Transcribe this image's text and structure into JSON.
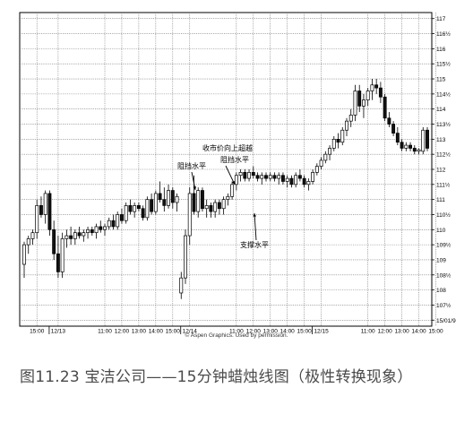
{
  "chart_data": {
    "type": "candlestick",
    "title": "",
    "xlabel": "",
    "ylabel": "",
    "ylim": [
      106.8,
      117.2
    ],
    "y_ticks": [
      {
        "v": 117,
        "label": "117"
      },
      {
        "v": 116.5,
        "label": "116½"
      },
      {
        "v": 116,
        "label": "116"
      },
      {
        "v": 115.5,
        "label": "115½"
      },
      {
        "v": 115,
        "label": "115"
      },
      {
        "v": 114.5,
        "label": "114½"
      },
      {
        "v": 114,
        "label": "114"
      },
      {
        "v": 113.5,
        "label": "113½"
      },
      {
        "v": 113,
        "label": "113"
      },
      {
        "v": 112.5,
        "label": "112½"
      },
      {
        "v": 112,
        "label": "112"
      },
      {
        "v": 111.5,
        "label": "111½"
      },
      {
        "v": 111,
        "label": "111"
      },
      {
        "v": 110.5,
        "label": "110½"
      },
      {
        "v": 110,
        "label": "110"
      },
      {
        "v": 109.5,
        "label": "109½"
      },
      {
        "v": 109,
        "label": "109"
      },
      {
        "v": 108.5,
        "label": "108½"
      },
      {
        "v": 108,
        "label": "108"
      },
      {
        "v": 107.5,
        "label": "107½"
      },
      {
        "v": 107,
        "label": "15/01/9"
      }
    ],
    "x_ticks": [
      {
        "i": 3,
        "label": "15:00"
      },
      {
        "i": 8,
        "label": "12/13"
      },
      {
        "i": 19,
        "label": "11:00"
      },
      {
        "i": 23,
        "label": "12:00"
      },
      {
        "i": 27,
        "label": "13:00"
      },
      {
        "i": 31,
        "label": "14:00"
      },
      {
        "i": 35,
        "label": "15:00"
      },
      {
        "i": 39,
        "label": "12/14"
      },
      {
        "i": 50,
        "label": "11:00"
      },
      {
        "i": 54,
        "label": "12:00"
      },
      {
        "i": 58,
        "label": "13:00"
      },
      {
        "i": 62,
        "label": "14:00"
      },
      {
        "i": 66,
        "label": "15:00"
      },
      {
        "i": 70,
        "label": "12/15"
      },
      {
        "i": 81,
        "label": "11:00"
      },
      {
        "i": 85,
        "label": "12:00"
      },
      {
        "i": 89,
        "label": "13:00"
      },
      {
        "i": 93,
        "label": "14:00"
      },
      {
        "i": 97,
        "label": "15:00"
      }
    ],
    "candles": [
      [
        108.85,
        109.6,
        108.4,
        109.5
      ],
      [
        109.5,
        109.8,
        109.2,
        109.7
      ],
      [
        109.7,
        110.0,
        109.5,
        109.9
      ],
      [
        109.9,
        111.0,
        109.7,
        110.8
      ],
      [
        110.8,
        111.1,
        110.4,
        110.5
      ],
      [
        110.5,
        111.3,
        110.2,
        111.2
      ],
      [
        111.2,
        111.3,
        109.8,
        110.0
      ],
      [
        110.0,
        110.3,
        109.0,
        109.2
      ],
      [
        109.2,
        109.8,
        108.4,
        108.6
      ],
      [
        108.6,
        109.9,
        108.4,
        109.7
      ],
      [
        109.7,
        110.0,
        109.4,
        109.8
      ],
      [
        109.8,
        110.1,
        109.5,
        109.7
      ],
      [
        109.7,
        110.0,
        109.5,
        109.9
      ],
      [
        109.9,
        110.1,
        109.7,
        109.8
      ],
      [
        109.8,
        110.0,
        109.6,
        109.9
      ],
      [
        109.9,
        110.1,
        109.7,
        110.0
      ],
      [
        110.0,
        110.1,
        109.8,
        109.9
      ],
      [
        109.9,
        110.2,
        109.7,
        110.1
      ],
      [
        110.1,
        110.3,
        109.9,
        110.0
      ],
      [
        110.0,
        110.2,
        109.8,
        110.1
      ],
      [
        110.1,
        110.4,
        110.0,
        110.3
      ],
      [
        110.3,
        110.5,
        110.0,
        110.1
      ],
      [
        110.1,
        110.6,
        110.0,
        110.5
      ],
      [
        110.5,
        110.7,
        110.2,
        110.3
      ],
      [
        110.3,
        110.9,
        110.2,
        110.8
      ],
      [
        110.8,
        111.0,
        110.5,
        110.6
      ],
      [
        110.6,
        110.9,
        110.4,
        110.8
      ],
      [
        110.8,
        110.9,
        110.6,
        110.7
      ],
      [
        110.7,
        110.8,
        110.3,
        110.4
      ],
      [
        110.4,
        111.1,
        110.3,
        111.0
      ],
      [
        111.0,
        111.2,
        110.5,
        110.6
      ],
      [
        110.6,
        111.3,
        110.5,
        111.2
      ],
      [
        111.2,
        111.6,
        110.9,
        111.0
      ],
      [
        111.0,
        111.4,
        110.6,
        110.8
      ],
      [
        110.8,
        111.5,
        110.7,
        111.3
      ],
      [
        111.3,
        111.4,
        110.7,
        110.9
      ],
      [
        110.9,
        111.2,
        110.6,
        111.1
      ],
      [
        107.9,
        108.6,
        107.7,
        108.4
      ],
      [
        108.4,
        110.0,
        108.2,
        109.8
      ],
      [
        109.8,
        111.4,
        109.5,
        111.2
      ],
      [
        111.2,
        111.8,
        110.5,
        110.6
      ],
      [
        110.6,
        111.4,
        110.4,
        111.3
      ],
      [
        111.3,
        111.4,
        110.6,
        110.7
      ],
      [
        110.7,
        111.0,
        110.4,
        110.8
      ],
      [
        110.8,
        110.9,
        110.4,
        110.6
      ],
      [
        110.6,
        111.0,
        110.4,
        110.9
      ],
      [
        110.9,
        111.0,
        110.5,
        110.7
      ],
      [
        110.7,
        111.1,
        110.5,
        111.0
      ],
      [
        111.0,
        111.2,
        110.8,
        111.1
      ],
      [
        111.1,
        111.6,
        111.0,
        111.5
      ],
      [
        111.5,
        111.9,
        111.3,
        111.8
      ],
      [
        111.8,
        112.0,
        111.6,
        111.9
      ],
      [
        111.9,
        112.0,
        111.6,
        111.7
      ],
      [
        111.7,
        112.0,
        111.6,
        111.9
      ],
      [
        111.9,
        112.1,
        111.7,
        111.8
      ],
      [
        111.8,
        111.9,
        111.6,
        111.7
      ],
      [
        111.7,
        111.9,
        111.5,
        111.8
      ],
      [
        111.8,
        111.9,
        111.6,
        111.7
      ],
      [
        111.7,
        111.9,
        111.6,
        111.8
      ],
      [
        111.8,
        111.9,
        111.6,
        111.7
      ],
      [
        111.7,
        111.9,
        111.5,
        111.8
      ],
      [
        111.8,
        111.9,
        111.5,
        111.6
      ],
      [
        111.6,
        111.8,
        111.4,
        111.7
      ],
      [
        111.7,
        111.8,
        111.4,
        111.5
      ],
      [
        111.5,
        111.9,
        111.4,
        111.8
      ],
      [
        111.8,
        112.0,
        111.6,
        111.7
      ],
      [
        111.7,
        111.8,
        111.4,
        111.5
      ],
      [
        111.5,
        111.7,
        111.3,
        111.6
      ],
      [
        111.6,
        112.0,
        111.5,
        111.9
      ],
      [
        111.9,
        112.2,
        111.8,
        112.1
      ],
      [
        112.1,
        112.4,
        112.0,
        112.3
      ],
      [
        112.3,
        112.6,
        112.2,
        112.5
      ],
      [
        112.5,
        112.8,
        112.3,
        112.7
      ],
      [
        112.7,
        113.1,
        112.6,
        113.0
      ],
      [
        113.0,
        113.2,
        112.7,
        112.9
      ],
      [
        112.9,
        113.4,
        112.8,
        113.3
      ],
      [
        113.3,
        113.7,
        113.1,
        113.6
      ],
      [
        113.6,
        114.0,
        113.4,
        113.8
      ],
      [
        113.8,
        114.8,
        113.6,
        114.6
      ],
      [
        114.6,
        114.8,
        113.9,
        114.1
      ],
      [
        114.1,
        114.5,
        113.7,
        114.3
      ],
      [
        114.3,
        114.7,
        114.1,
        114.6
      ],
      [
        114.6,
        115.0,
        114.3,
        114.8
      ],
      [
        114.8,
        115.0,
        114.5,
        114.7
      ],
      [
        114.7,
        114.9,
        114.2,
        114.4
      ],
      [
        114.4,
        114.5,
        113.6,
        113.7
      ],
      [
        113.7,
        113.9,
        113.4,
        113.5
      ],
      [
        113.5,
        113.6,
        113.1,
        113.2
      ],
      [
        113.2,
        113.4,
        112.8,
        112.9
      ],
      [
        112.9,
        113.0,
        112.6,
        112.7
      ],
      [
        112.7,
        112.9,
        112.6,
        112.8
      ],
      [
        112.8,
        112.9,
        112.6,
        112.7
      ],
      [
        112.7,
        112.8,
        112.5,
        112.6
      ],
      [
        112.6,
        112.7,
        112.5,
        112.65
      ],
      [
        112.6,
        113.4,
        112.5,
        113.3
      ],
      [
        113.3,
        113.4,
        112.6,
        112.7
      ]
    ],
    "resistance_level": 111.1,
    "support_level": 111.8,
    "grid": true,
    "annotations": [
      {
        "text": "阻挡水平",
        "name": "annotation-resistance-1"
      },
      {
        "text": "收市价向上超越",
        "name": "annotation-close-above"
      },
      {
        "text": "阻挡水平",
        "name": "annotation-resistance-2"
      },
      {
        "text": "支撑水平",
        "name": "annotation-support"
      }
    ]
  },
  "credit": "© Aspen Graphics. Used by permission.",
  "caption": "图11.23 宝洁公司——15分钟蜡烛线图（极性转换现象）"
}
